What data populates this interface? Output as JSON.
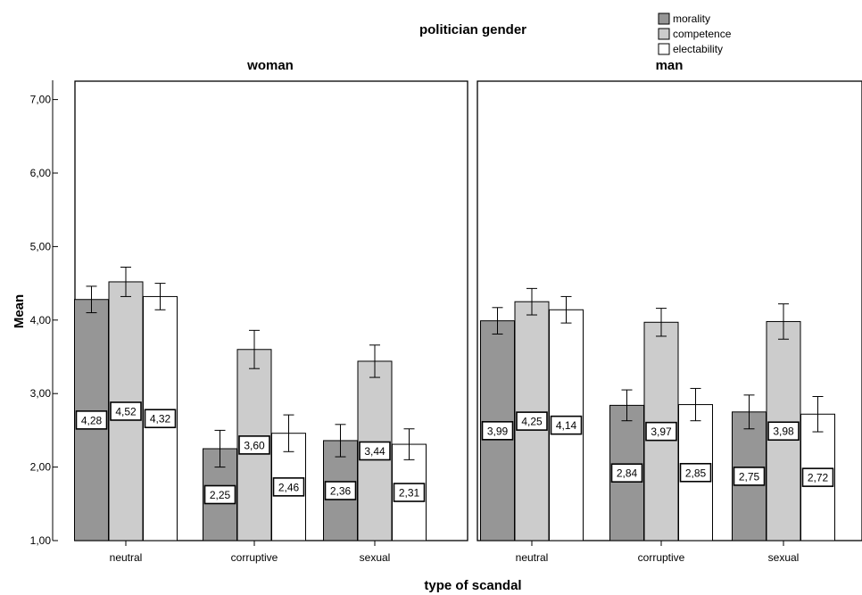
{
  "chart_data": {
    "type": "bar",
    "title": "politician gender",
    "xlabel": "type of scandal",
    "ylabel": "Mean",
    "ylim": [
      1,
      7.25
    ],
    "yticks": [
      "1,00",
      "2,00",
      "3,00",
      "4,00",
      "5,00",
      "6,00",
      "7,00"
    ],
    "ytick_values": [
      1,
      2,
      3,
      4,
      5,
      6,
      7
    ],
    "categories": [
      "neutral",
      "corruptive",
      "sexual"
    ],
    "legend_position": "top-right",
    "grid": false,
    "series_colors": {
      "morality": "#969696",
      "competence": "#cccccc",
      "electability": "#ffffff"
    },
    "series_names": [
      "morality",
      "competence",
      "electability"
    ],
    "panels": [
      {
        "name": "woman",
        "series": [
          {
            "name": "morality",
            "values": [
              4.28,
              2.25,
              2.36
            ],
            "labels": [
              "4,28",
              "2,25",
              "2,36"
            ],
            "err": [
              0.18,
              0.25,
              0.22
            ]
          },
          {
            "name": "competence",
            "values": [
              4.52,
              3.6,
              3.44
            ],
            "labels": [
              "4,52",
              "3,60",
              "3,44"
            ],
            "err": [
              0.2,
              0.26,
              0.22
            ]
          },
          {
            "name": "electability",
            "values": [
              4.32,
              2.46,
              2.31
            ],
            "labels": [
              "4,32",
              "2,46",
              "2,31"
            ],
            "err": [
              0.18,
              0.25,
              0.21
            ]
          }
        ]
      },
      {
        "name": "man",
        "series": [
          {
            "name": "morality",
            "values": [
              3.99,
              2.84,
              2.75
            ],
            "labels": [
              "3,99",
              "2,84",
              "2,75"
            ],
            "err": [
              0.18,
              0.21,
              0.23
            ]
          },
          {
            "name": "competence",
            "values": [
              4.25,
              3.97,
              3.98
            ],
            "labels": [
              "4,25",
              "3,97",
              "3,98"
            ],
            "err": [
              0.18,
              0.19,
              0.24
            ]
          },
          {
            "name": "electability",
            "values": [
              4.14,
              2.85,
              2.72
            ],
            "labels": [
              "4,14",
              "2,85",
              "2,72"
            ],
            "err": [
              0.18,
              0.22,
              0.24
            ]
          }
        ]
      }
    ]
  }
}
